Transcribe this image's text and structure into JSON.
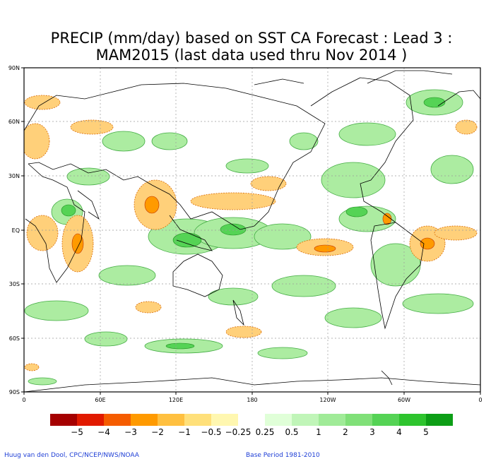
{
  "title_line1": "PRECIP (mm/day) based on SST CA Forecast : Lead 3 :",
  "title_line2": "MAM2015 (last data used thru Nov 2014 )",
  "lat_labels": [
    "90N",
    "60N",
    "30N",
    "EQ",
    "30S",
    "60S",
    "90S"
  ],
  "lon_labels": [
    "0",
    "60E",
    "120E",
    "180",
    "120W",
    "60W",
    "0"
  ],
  "colorbar": {
    "colors": [
      "#a50000",
      "#e11a00",
      "#f55c00",
      "#ff9a00",
      "#ffc040",
      "#ffe07a",
      "#fff7b0",
      "#ffffff",
      "#e0ffd8",
      "#c0f5b8",
      "#a0eb98",
      "#80e078",
      "#55d355",
      "#2ec42e",
      "#0d9e16"
    ],
    "labels": [
      "−5",
      "−4",
      "−3",
      "−2",
      "−1",
      "−0.5",
      "−0.25",
      "0.25",
      "0.5",
      "1",
      "2",
      "3",
      "4",
      "5"
    ]
  },
  "credit_left": "Huug van den Dool, CPC/NCEP/NWS/NOAA",
  "credit_right": "Base Period 1981-2010"
}
